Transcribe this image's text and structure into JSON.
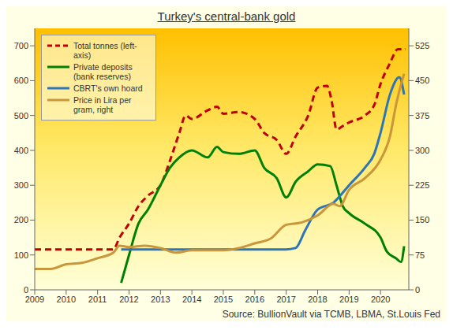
{
  "chart_data": {
    "type": "line",
    "title": "Turkey's central-bank gold",
    "source": "Source: BullionVault via TCMB, LBMA, St.Louis Fed",
    "xlim": [
      2009,
      2020.9
    ],
    "xticks": [
      2009,
      2010,
      2011,
      2012,
      2013,
      2014,
      2015,
      2016,
      2017,
      2018,
      2019,
      2020
    ],
    "ylim": [
      0,
      750
    ],
    "yticks": [
      0,
      100,
      200,
      300,
      400,
      500,
      600,
      700
    ],
    "y2lim": [
      0,
      562.5
    ],
    "y2ticks": [
      0,
      75,
      150,
      225,
      300,
      375,
      450,
      525
    ],
    "grid": false,
    "legend": "top-left",
    "series": [
      {
        "name": "Total tonnes (left-axis)",
        "color": "#C00000",
        "line_style": "dashed",
        "axis": "y",
        "x": [
          2009,
          2010,
          2011,
          2011.5,
          2011.7,
          2012,
          2012.3,
          2012.6,
          2013,
          2013.3,
          2013.6,
          2013.8,
          2014,
          2014.5,
          2014.8,
          2015,
          2015.5,
          2016,
          2016.3,
          2016.7,
          2017,
          2017.3,
          2017.7,
          2018,
          2018.3,
          2018.45,
          2018.6,
          2018.8,
          2019,
          2019.5,
          2019.8,
          2020,
          2020.3,
          2020.55,
          2020.8
        ],
        "values": [
          116,
          116,
          116,
          116,
          150,
          190,
          240,
          270,
          300,
          370,
          450,
          500,
          490,
          515,
          525,
          505,
          510,
          490,
          450,
          430,
          390,
          440,
          500,
          580,
          585,
          540,
          460,
          470,
          480,
          500,
          530,
          590,
          650,
          690,
          690
        ]
      },
      {
        "name": "Private deposits (bank reserves)",
        "color": "#008000",
        "line_style": "solid",
        "axis": "y",
        "x": [
          2011.75,
          2012,
          2012.3,
          2012.6,
          2013,
          2013.3,
          2013.6,
          2014,
          2014.5,
          2014.8,
          2015,
          2015.5,
          2016,
          2016.3,
          2016.7,
          2017,
          2017.3,
          2017.7,
          2018,
          2018.4,
          2018.6,
          2018.8,
          2019,
          2019.5,
          2020,
          2020.2,
          2020.5,
          2020.65,
          2020.75
        ],
        "values": [
          20,
          100,
          190,
          230,
          300,
          350,
          380,
          400,
          380,
          410,
          395,
          390,
          400,
          350,
          320,
          265,
          310,
          340,
          360,
          355,
          300,
          240,
          220,
          190,
          150,
          110,
          90,
          80,
          125
        ]
      },
      {
        "name": "CBRT's own hoard",
        "color": "#2E75B6",
        "line_style": "solid",
        "axis": "y",
        "x": [
          2011.75,
          2013,
          2014,
          2015,
          2016,
          2017,
          2017.3,
          2017.6,
          2018,
          2018.5,
          2019,
          2019.5,
          2019.8,
          2020,
          2020.3,
          2020.6,
          2020.75
        ],
        "values": [
          116,
          116,
          116,
          116,
          116,
          116,
          120,
          170,
          230,
          250,
          300,
          350,
          390,
          450,
          560,
          610,
          560
        ]
      },
      {
        "name": "Price in Lira per gram, right",
        "color": "#C9963C",
        "line_style": "solid",
        "axis": "y2",
        "x": [
          2009,
          2009.5,
          2010,
          2010.5,
          2011,
          2011.5,
          2011.7,
          2012,
          2012.5,
          2013,
          2013.5,
          2014,
          2015,
          2015.5,
          2016,
          2016.5,
          2017,
          2017.5,
          2018,
          2018.5,
          2018.7,
          2019,
          2019.5,
          2020,
          2020.3,
          2020.5,
          2020.75
        ],
        "values": [
          45,
          45,
          55,
          58,
          68,
          80,
          95,
          92,
          95,
          90,
          80,
          85,
          85,
          90,
          100,
          110,
          140,
          145,
          160,
          185,
          180,
          215,
          240,
          280,
          330,
          400,
          465
        ]
      }
    ]
  }
}
